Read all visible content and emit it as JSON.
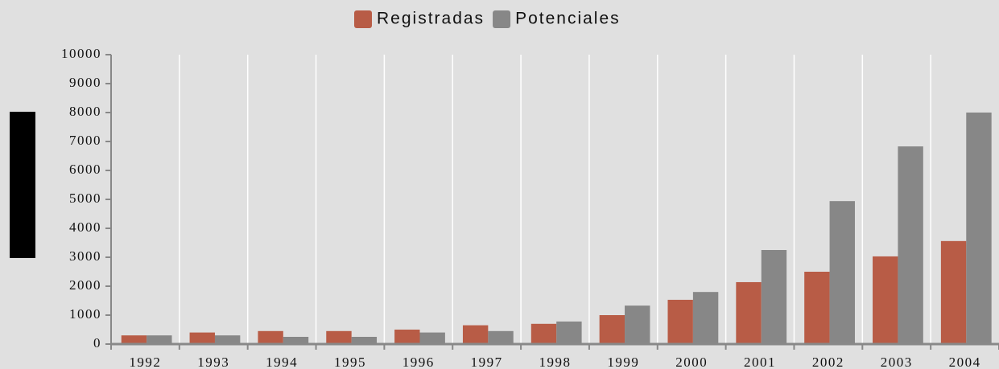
{
  "chart_data": {
    "type": "bar",
    "categories": [
      "1992",
      "1993",
      "1994",
      "1995",
      "1996",
      "1997",
      "1998",
      "1999",
      "2000",
      "2001",
      "2002",
      "2003",
      "2004"
    ],
    "series": [
      {
        "name": "Registradas",
        "color": "#b85c46",
        "values": [
          300,
          400,
          450,
          450,
          500,
          650,
          700,
          1000,
          1530,
          2140,
          2500,
          3030,
          3560
        ]
      },
      {
        "name": "Potenciales",
        "color": "#878787",
        "values": [
          300,
          300,
          250,
          250,
          400,
          450,
          780,
          1330,
          1800,
          3250,
          4940,
          6830,
          8000
        ]
      }
    ],
    "ylim": [
      0,
      10000
    ],
    "yticks": [
      0,
      1000,
      2000,
      3000,
      4000,
      5000,
      6000,
      7000,
      8000,
      9000,
      10000
    ],
    "grid": true
  }
}
